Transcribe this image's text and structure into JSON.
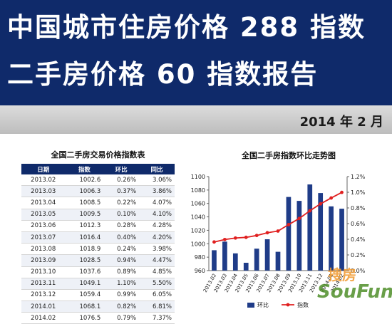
{
  "header": {
    "line1": "中国城市住房价格 288 指数",
    "line2": "二手房价格 60 指数报告",
    "date": "2014 年 2 月"
  },
  "table": {
    "title": "全国二手房交易价格指数表",
    "columns": [
      "日期",
      "指数",
      "环比",
      "同比"
    ],
    "rows": [
      [
        "2013.02",
        "1002.6",
        "0.26%",
        "3.06%"
      ],
      [
        "2013.03",
        "1006.3",
        "0.37%",
        "3.86%"
      ],
      [
        "2013.04",
        "1008.5",
        "0.22%",
        "4.07%"
      ],
      [
        "2013.05",
        "1009.5",
        "0.10%",
        "4.10%"
      ],
      [
        "2013.06",
        "1012.3",
        "0.28%",
        "4.28%"
      ],
      [
        "2013.07",
        "1016.4",
        "0.40%",
        "4.20%"
      ],
      [
        "2013.08",
        "1018.9",
        "0.24%",
        "3.98%"
      ],
      [
        "2013.09",
        "1028.5",
        "0.94%",
        "4.47%"
      ],
      [
        "2013.10",
        "1037.6",
        "0.89%",
        "4.85%"
      ],
      [
        "2013.11",
        "1049.1",
        "1.10%",
        "5.50%"
      ],
      [
        "2013.12",
        "1059.4",
        "0.99%",
        "6.05%"
      ],
      [
        "2014.01",
        "1068.1",
        "0.82%",
        "6.81%"
      ],
      [
        "2014.02",
        "1076.5",
        "0.79%",
        "7.37%"
      ]
    ]
  },
  "chart_data": {
    "type": "bar",
    "title": "全国二手房指数环比走势图",
    "categories": [
      "2013.02",
      "2013.03",
      "2013.04",
      "2013.05",
      "2013.06",
      "2013.07",
      "2013.08",
      "2013.09",
      "2013.10",
      "2013.11",
      "2013.12",
      "2014.01",
      "2014.02"
    ],
    "series": [
      {
        "name": "环比",
        "type": "bar",
        "axis": "right",
        "values": [
          0.26,
          0.37,
          0.22,
          0.1,
          0.28,
          0.4,
          0.24,
          0.94,
          0.89,
          1.1,
          0.99,
          0.82,
          0.79
        ],
        "color": "#1f3c88"
      },
      {
        "name": "指数",
        "type": "line",
        "axis": "left",
        "values": [
          1002.6,
          1006.3,
          1008.5,
          1009.5,
          1012.3,
          1016.4,
          1018.9,
          1028.5,
          1037.6,
          1049.1,
          1059.4,
          1068.1,
          1076.5
        ],
        "color": "#e02020"
      }
    ],
    "yleft": {
      "ylim": [
        960,
        1100
      ],
      "ticks": [
        "960",
        "980",
        "1000",
        "1020",
        "1040",
        "1060",
        "1080",
        "1100"
      ]
    },
    "yright": {
      "ylim": [
        0,
        1.2
      ],
      "ticks": [
        "0.0%",
        "0.2%",
        "0.4%",
        "0.6%",
        "0.8%",
        "1.0%",
        "1.2%"
      ]
    },
    "legend": "bottom",
    "grid": false
  },
  "watermark": {
    "text": "SouFun",
    "cn": "搜房"
  },
  "colors": {
    "banner": "#0f2a6a",
    "bar": "#1f3c88",
    "line": "#e02020"
  }
}
